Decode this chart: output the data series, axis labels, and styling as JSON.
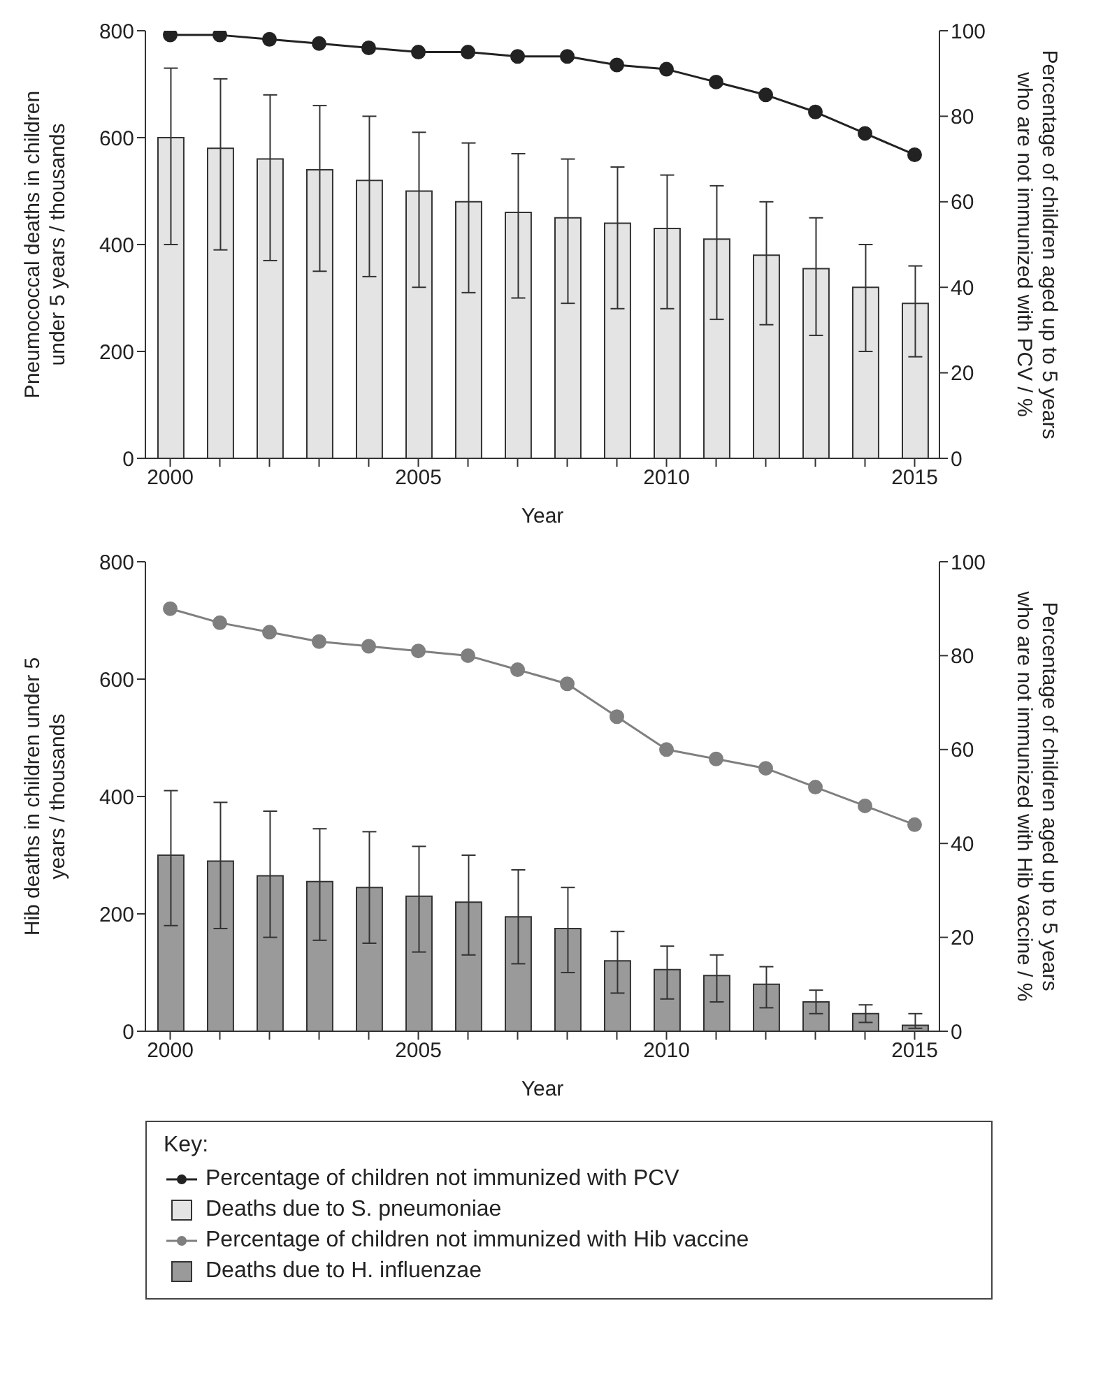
{
  "chart_data": [
    {
      "type": "bar",
      "xlabel": "Year",
      "ylabel": "Pneumococcal deaths in children under 5 years / thousands",
      "y2label": "Percentage of children aged up to 5 years who are not immunized with PCV / %",
      "x": [
        2000,
        2001,
        2002,
        2003,
        2004,
        2005,
        2006,
        2007,
        2008,
        2009,
        2010,
        2011,
        2012,
        2013,
        2014,
        2015
      ],
      "xlim": [
        1999.5,
        2015.5
      ],
      "xticks": [
        2000,
        {
          "value": 2001,
          "label": null
        },
        {
          "value": 2002,
          "label": null
        },
        {
          "value": 2003,
          "label": null
        },
        {
          "value": 2004,
          "label": null
        },
        2005,
        {
          "value": 2006,
          "label": null
        },
        {
          "value": 2007,
          "label": null
        },
        {
          "value": 2008,
          "label": null
        },
        {
          "value": 2009,
          "label": null
        },
        2010,
        {
          "value": 2011,
          "label": null
        },
        {
          "value": 2012,
          "label": null
        },
        {
          "value": 2013,
          "label": null
        },
        {
          "value": 2014,
          "label": null
        },
        2015
      ],
      "ylim": [
        0,
        800
      ],
      "yticks": [
        0,
        200,
        400,
        600,
        800
      ],
      "y2lim": [
        0,
        100
      ],
      "y2ticks": [
        0,
        20,
        40,
        60,
        80,
        100
      ],
      "legend": "bottom",
      "marker": "circle",
      "series": [
        {
          "name": "Percentage of children not immunized with PCV",
          "type": "line",
          "axis": "y2",
          "color": "#222222",
          "values": [
            99,
            99,
            98,
            97,
            96,
            95,
            95,
            94,
            94,
            92,
            91,
            88,
            85,
            81,
            76,
            71
          ]
        },
        {
          "name": "Deaths due to S. pneumoniae",
          "color": "#e4e4e4",
          "values": [
            600,
            580,
            560,
            540,
            520,
            500,
            480,
            460,
            450,
            440,
            430,
            410,
            380,
            355,
            320,
            290
          ],
          "errors": [
            [
              400,
              730
            ],
            [
              390,
              710
            ],
            [
              370,
              680
            ],
            [
              350,
              660
            ],
            [
              340,
              640
            ],
            [
              320,
              610
            ],
            [
              310,
              590
            ],
            [
              300,
              570
            ],
            [
              290,
              560
            ],
            [
              280,
              545
            ],
            [
              280,
              530
            ],
            [
              260,
              510
            ],
            [
              250,
              480
            ],
            [
              230,
              450
            ],
            [
              200,
              400
            ],
            [
              190,
              360
            ]
          ]
        }
      ]
    },
    {
      "type": "bar",
      "xlabel": "Year",
      "ylabel": "Hib deaths in children under 5 years / thousands",
      "y2label": "Percentage of children aged up to 5 years who are not immunized with Hib vaccine / %",
      "legend_title": "Key:",
      "x": [
        2000,
        2001,
        2002,
        2003,
        2004,
        2005,
        2006,
        2007,
        2008,
        2009,
        2010,
        2011,
        2012,
        2013,
        2014,
        2015
      ],
      "xlim": [
        1999.5,
        2015.5
      ],
      "xticks": [
        2000,
        {
          "value": 2001,
          "label": null
        },
        {
          "value": 2002,
          "label": null
        },
        {
          "value": 2003,
          "label": null
        },
        {
          "value": 2004,
          "label": null
        },
        2005,
        {
          "value": 2006,
          "label": null
        },
        {
          "value": 2007,
          "label": null
        },
        {
          "value": 2008,
          "label": null
        },
        {
          "value": 2009,
          "label": null
        },
        2010,
        {
          "value": 2011,
          "label": null
        },
        {
          "value": 2012,
          "label": null
        },
        {
          "value": 2013,
          "label": null
        },
        {
          "value": 2014,
          "label": null
        },
        2015
      ],
      "ylim": [
        0,
        800
      ],
      "yticks": [
        0,
        200,
        400,
        600,
        800
      ],
      "y2lim": [
        0,
        100
      ],
      "y2ticks": [
        0,
        20,
        40,
        60,
        80,
        100
      ],
      "legend": "bottom",
      "marker": "circle",
      "series": [
        {
          "name": "Percentage of children not immunized with Hib vaccine",
          "type": "line",
          "axis": "y2",
          "color": "#7f7f7f",
          "values": [
            90,
            87,
            85,
            83,
            82,
            81,
            80,
            77,
            74,
            67,
            60,
            58,
            56,
            52,
            48,
            44
          ]
        },
        {
          "name": "Deaths due to H. influenzae",
          "color": "#9a9a9a",
          "values": [
            300,
            290,
            265,
            255,
            245,
            230,
            220,
            195,
            175,
            120,
            105,
            95,
            80,
            50,
            30,
            10
          ],
          "errors": [
            [
              180,
              410
            ],
            [
              175,
              390
            ],
            [
              160,
              375
            ],
            [
              155,
              345
            ],
            [
              150,
              340
            ],
            [
              135,
              315
            ],
            [
              130,
              300
            ],
            [
              115,
              275
            ],
            [
              100,
              245
            ],
            [
              65,
              170
            ],
            [
              55,
              145
            ],
            [
              50,
              130
            ],
            [
              40,
              110
            ],
            [
              30,
              70
            ],
            [
              15,
              45
            ],
            [
              5,
              30
            ]
          ]
        }
      ]
    }
  ]
}
